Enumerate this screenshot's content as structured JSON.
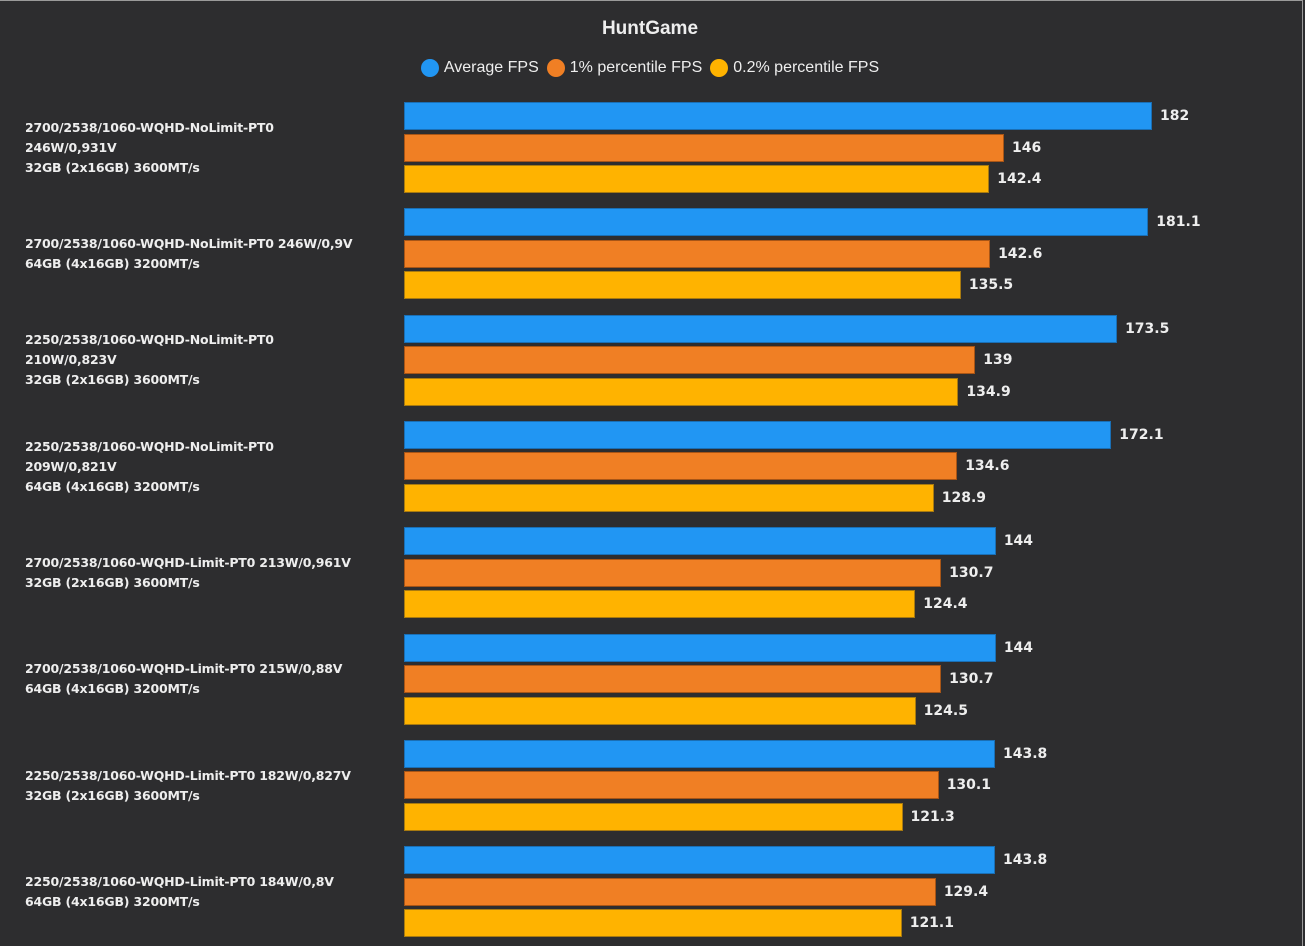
{
  "chart_data": {
    "type": "bar",
    "orientation": "horizontal",
    "title": "HuntGame",
    "xlabel": "",
    "ylabel": "",
    "xlim": [
      0,
      182
    ],
    "grid": false,
    "legend_position": "top-center",
    "categories": [
      "2700/2538/1060-WQHD-NoLimit-PT0\n246W/0,931V\n32GB (2x16GB) 3600MT/s",
      "2700/2538/1060-WQHD-NoLimit-PT0 246W/0,9V\n64GB (4x16GB) 3200MT/s",
      "2250/2538/1060-WQHD-NoLimit-PT0\n210W/0,823V\n32GB (2x16GB) 3600MT/s",
      "2250/2538/1060-WQHD-NoLimit-PT0\n209W/0,821V\n64GB (4x16GB) 3200MT/s",
      "2700/2538/1060-WQHD-Limit-PT0 213W/0,961V\n32GB (2x16GB) 3600MT/s",
      "2700/2538/1060-WQHD-Limit-PT0 215W/0,88V\n64GB (4x16GB) 3200MT/s",
      "2250/2538/1060-WQHD-Limit-PT0 182W/0,827V\n32GB (2x16GB) 3600MT/s",
      "2250/2538/1060-WQHD-Limit-PT0 184W/0,8V\n64GB (4x16GB) 3200MT/s"
    ],
    "series": [
      {
        "name": "Average FPS",
        "color": "#2196f3",
        "border": "#1a6fb5",
        "values": [
          182,
          181.1,
          173.5,
          172.1,
          144,
          144,
          143.8,
          143.8
        ],
        "labels": [
          "182",
          "181.1",
          "173.5",
          "172.1",
          "144",
          "144",
          "143.8",
          "143.8"
        ]
      },
      {
        "name": "1% percentile FPS",
        "color": "#f07f24",
        "border": "#a85516",
        "values": [
          146,
          142.6,
          139,
          134.6,
          130.7,
          130.7,
          130.1,
          129.4
        ],
        "labels": [
          "146",
          "142.6",
          "139",
          "134.6",
          "130.7",
          "130.7",
          "130.1",
          "129.4"
        ]
      },
      {
        "name": "0.2% percentile FPS",
        "color": "#ffb300",
        "border": "#a87a10",
        "values": [
          142.4,
          135.5,
          134.9,
          128.9,
          124.4,
          124.5,
          121.3,
          121.1
        ],
        "labels": [
          "142.4",
          "135.5",
          "134.9",
          "128.9",
          "124.4",
          "124.5",
          "121.3",
          "121.1"
        ]
      }
    ]
  }
}
